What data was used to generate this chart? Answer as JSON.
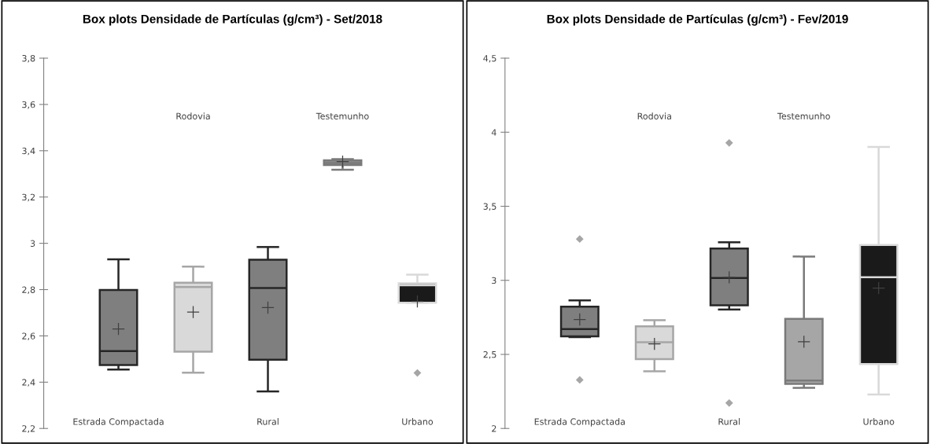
{
  "chart_data": [
    {
      "type": "box",
      "title": "Box plots Densidade de Partículas (g/cm³) - Set/2018",
      "categories": [
        "Estrada Compactada",
        "Rodovia",
        "Rural",
        "Testemunho",
        "Urbano"
      ],
      "colors": [
        "#7f7f7f",
        "#d9d9d9",
        "#7f7f7f",
        "#8c8c8c",
        "#1a1a1a"
      ],
      "boxes": [
        {
          "low": 2.455,
          "q1": 2.474,
          "median": 2.534,
          "q3": 2.798,
          "high": 2.931,
          "mean": 2.63
        },
        {
          "low": 2.441,
          "q1": 2.532,
          "median": 2.811,
          "q3": 2.83,
          "high": 2.899,
          "mean": 2.703
        },
        {
          "low": 2.36,
          "q1": 2.497,
          "median": 2.807,
          "q3": 2.929,
          "high": 2.984,
          "mean": 2.722
        },
        {
          "low": 3.318,
          "q1": 3.338,
          "median": 3.347,
          "q3": 3.359,
          "high": 3.364,
          "mean": 3.353
        },
        {
          "low": 2.743,
          "q1": 2.743,
          "median": 2.819,
          "q3": 2.827,
          "high": 2.865,
          "mean": 2.749,
          "outliers": [
            2.44
          ]
        }
      ],
      "ylim": [
        2.2,
        3.8
      ],
      "yticks": [
        {
          "value": 2.2,
          "label": "2,2"
        },
        {
          "value": 2.4,
          "label": "2,4"
        },
        {
          "value": 2.6,
          "label": "2,6"
        },
        {
          "value": 2.8,
          "label": "2,8"
        },
        {
          "value": 3,
          "label": "3"
        },
        {
          "value": 3.2,
          "label": "3,2"
        },
        {
          "value": 3.4,
          "label": "3,4"
        },
        {
          "value": 3.6,
          "label": "3,6"
        },
        {
          "value": 3.8,
          "label": "3,8"
        }
      ],
      "grid": false,
      "legend": false
    },
    {
      "type": "box",
      "title": "Box plots Densidade de Partículas (g/cm³) - Fev/2019",
      "categories": [
        "Estrada Compactada",
        "Rodovia",
        "Rural",
        "Testemunho",
        "Urbano"
      ],
      "colors": [
        "#7f7f7f",
        "#d9d9d9",
        "#7f7f7f",
        "#a6a6a6",
        "#1a1a1a"
      ],
      "boxes": [
        {
          "low": 2.617,
          "q1": 2.622,
          "median": 2.671,
          "q3": 2.822,
          "high": 2.864,
          "mean": 2.736,
          "outliers": [
            3.279,
            2.328
          ]
        },
        {
          "low": 2.386,
          "q1": 2.468,
          "median": 2.582,
          "q3": 2.689,
          "high": 2.731,
          "mean": 2.571
        },
        {
          "low": 2.803,
          "q1": 2.831,
          "median": 3.016,
          "q3": 3.215,
          "high": 3.257,
          "mean": 3.021,
          "outliers": [
            3.928,
            2.172
          ]
        },
        {
          "low": 2.274,
          "q1": 2.301,
          "median": 2.323,
          "q3": 2.74,
          "high": 3.161,
          "mean": 2.586
        },
        {
          "low": 2.229,
          "q1": 2.435,
          "median": 3.021,
          "q3": 3.239,
          "high": 3.901,
          "mean": 2.948
        }
      ],
      "ylim": [
        2,
        4.5
      ],
      "yticks": [
        {
          "value": 2,
          "label": "2"
        },
        {
          "value": 2.5,
          "label": "2,5"
        },
        {
          "value": 3,
          "label": "3"
        },
        {
          "value": 3.5,
          "label": "3,5"
        },
        {
          "value": 4,
          "label": "4"
        },
        {
          "value": 4.5,
          "label": "4,5"
        }
      ],
      "grid": false,
      "legend": false
    }
  ]
}
